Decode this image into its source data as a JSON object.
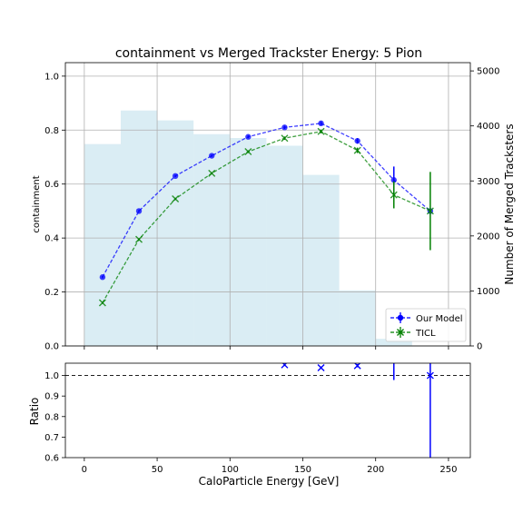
{
  "chart_data": [
    {
      "type": "line",
      "title": "containment vs Merged Trackster Energy: 5 Pion",
      "xlabel": "",
      "ylabel": "containment",
      "ylabel_right": "Number of Merged Tracksters",
      "xlim": [
        -13,
        265
      ],
      "ylim": [
        0,
        1.05
      ],
      "ylim_right": [
        0,
        5150
      ],
      "xticks": [
        0,
        50,
        100,
        150,
        200,
        250
      ],
      "yticks": [
        0.0,
        0.2,
        0.4,
        0.6,
        0.8,
        1.0
      ],
      "yticks_right": [
        0,
        1000,
        2000,
        3000,
        4000,
        5000
      ],
      "grid": true,
      "legend_position": "lower-right",
      "histogram": {
        "color": "#add8e6",
        "bin_edges": [
          0,
          25,
          50,
          75,
          100,
          125,
          150,
          175,
          200,
          225,
          250
        ],
        "counts": [
          3670,
          4280,
          4100,
          3850,
          3780,
          3640,
          3110,
          1010,
          130,
          0
        ]
      },
      "series": [
        {
          "name": "Our Model",
          "color": "#0000ff",
          "marker": "circle",
          "x": [
            12.5,
            37.5,
            62.5,
            87.5,
            112.5,
            137.5,
            162.5,
            187.5,
            212.5,
            237.5
          ],
          "y": [
            0.255,
            0.5,
            0.63,
            0.705,
            0.775,
            0.81,
            0.825,
            0.76,
            0.615,
            0.5
          ],
          "yerr": [
            0.004,
            0.004,
            0.004,
            0.004,
            0.005,
            0.006,
            0.007,
            0.01,
            0.05,
            0.005
          ]
        },
        {
          "name": "TICL",
          "color": "#008000",
          "marker": "x",
          "x": [
            12.5,
            37.5,
            62.5,
            87.5,
            112.5,
            137.5,
            162.5,
            187.5,
            212.5,
            237.5
          ],
          "y": [
            0.16,
            0.395,
            0.545,
            0.64,
            0.72,
            0.77,
            0.795,
            0.725,
            0.56,
            0.5
          ],
          "yerr": [
            0.004,
            0.004,
            0.004,
            0.004,
            0.005,
            0.006,
            0.007,
            0.01,
            0.05,
            0.145
          ]
        }
      ]
    },
    {
      "type": "scatter",
      "title": "",
      "xlabel": "CaloParticle Energy [GeV]",
      "ylabel": "Ratio",
      "xlim": [
        -13,
        265
      ],
      "ylim": [
        0.6,
        1.06
      ],
      "xticks": [
        0,
        50,
        100,
        150,
        200,
        250
      ],
      "yticks": [
        0.6,
        0.7,
        0.8,
        0.9,
        1.0
      ],
      "reference_line": 1.0,
      "series": [
        {
          "color": "#0000ff",
          "marker": "x",
          "x": [
            137.5,
            162.5,
            187.5,
            212.5,
            237.5
          ],
          "y": [
            1.052,
            1.038,
            1.048,
            1.098,
            1.0
          ],
          "yerr": [
            0.006,
            0.006,
            0.008,
            0.12,
            0.42
          ]
        }
      ]
    }
  ]
}
